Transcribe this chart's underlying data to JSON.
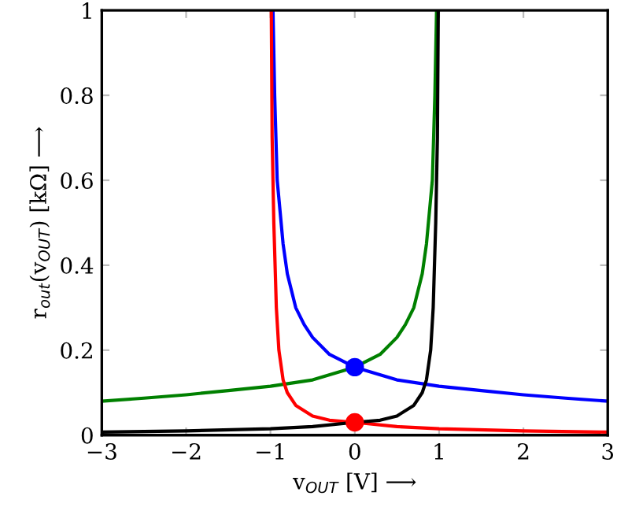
{
  "chart_data": {
    "type": "line",
    "xlabel": "v$_{OUT}$ [V] ⟶",
    "ylabel": "r$_{out}$(v$_{OUT}$) [kΩ] ⟶",
    "xlim": [
      -3,
      3
    ],
    "ylim": [
      0,
      1
    ],
    "xticks": [
      {
        "value": -3,
        "label": "−3"
      },
      {
        "value": -2,
        "label": "−2"
      },
      {
        "value": -1,
        "label": "−1"
      },
      0,
      1,
      2,
      3
    ],
    "yticks": [
      0,
      0.2,
      0.4,
      0.6,
      0.8,
      1
    ],
    "grid": false,
    "legend": false,
    "marker": "none",
    "line_style": "solid",
    "series": [
      {
        "color": "#0000ff",
        "x": [
          -0.97,
          -0.95,
          -0.92,
          -0.85,
          -0.8,
          -0.7,
          -0.6,
          -0.5,
          -0.3,
          0,
          0.5,
          1,
          1.5,
          2,
          2.5,
          3
        ],
        "values": [
          1.0,
          0.8,
          0.6,
          0.45,
          0.38,
          0.3,
          0.26,
          0.23,
          0.19,
          0.16,
          0.13,
          0.115,
          0.105,
          0.095,
          0.087,
          0.08
        ]
      },
      {
        "color": "#008000",
        "x": [
          -3,
          -2.5,
          -2,
          -1.5,
          -1,
          -0.5,
          0,
          0.3,
          0.5,
          0.6,
          0.7,
          0.8,
          0.85,
          0.92,
          0.95,
          0.97
        ],
        "values": [
          0.08,
          0.087,
          0.095,
          0.105,
          0.115,
          0.13,
          0.16,
          0.19,
          0.23,
          0.26,
          0.3,
          0.38,
          0.45,
          0.6,
          0.8,
          1.0
        ]
      },
      {
        "color": "#ff0000",
        "x": [
          -0.99,
          -0.98,
          -0.96,
          -0.93,
          -0.9,
          -0.85,
          -0.8,
          -0.7,
          -0.5,
          -0.3,
          0,
          0.5,
          1,
          2,
          3
        ],
        "values": [
          1.0,
          0.7,
          0.5,
          0.3,
          0.2,
          0.13,
          0.1,
          0.07,
          0.045,
          0.035,
          0.03,
          0.02,
          0.015,
          0.01,
          0.007
        ]
      },
      {
        "color": "#000000",
        "x": [
          -3,
          -2,
          -1,
          -0.5,
          0,
          0.3,
          0.5,
          0.7,
          0.8,
          0.85,
          0.9,
          0.93,
          0.96,
          0.98,
          0.99
        ],
        "values": [
          0.007,
          0.01,
          0.015,
          0.02,
          0.03,
          0.035,
          0.045,
          0.07,
          0.1,
          0.13,
          0.2,
          0.3,
          0.5,
          0.7,
          1.0
        ]
      },
      {
        "type": "scatter",
        "marker": "circle",
        "color": "#0000ff",
        "x": [
          0
        ],
        "values": [
          0.16
        ]
      },
      {
        "type": "scatter",
        "marker": "circle",
        "color": "#ff0000",
        "x": [
          0
        ],
        "values": [
          0.03
        ]
      }
    ]
  }
}
